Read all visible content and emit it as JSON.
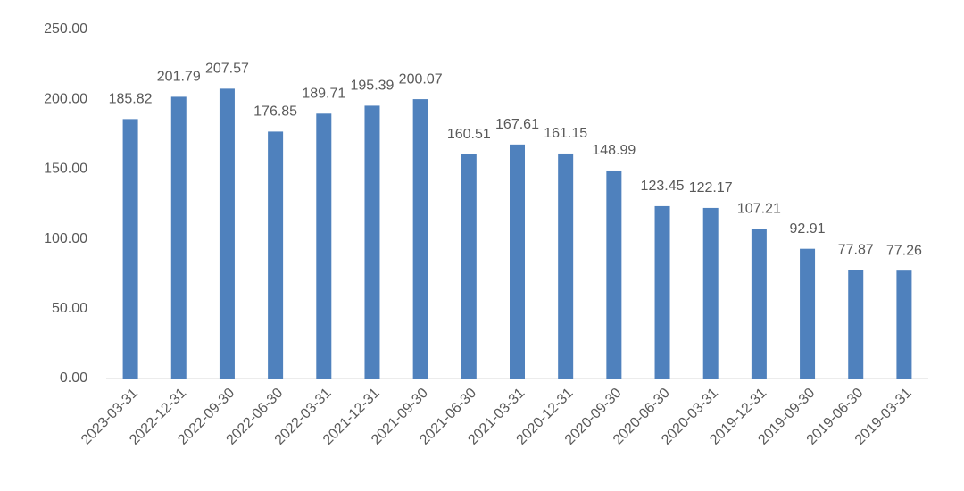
{
  "chart_data": {
    "type": "bar",
    "categories": [
      "2023-03-31",
      "2022-12-31",
      "2022-09-30",
      "2022-06-30",
      "2022-03-31",
      "2021-12-31",
      "2021-09-30",
      "2021-06-30",
      "2021-03-31",
      "2020-12-31",
      "2020-09-30",
      "2020-06-30",
      "2020-03-31",
      "2019-12-31",
      "2019-09-30",
      "2019-06-30",
      "2019-03-31"
    ],
    "values": [
      185.82,
      201.79,
      207.57,
      176.85,
      189.71,
      195.39,
      200.07,
      160.51,
      167.61,
      161.15,
      148.99,
      123.45,
      122.17,
      107.21,
      92.91,
      77.87,
      77.26
    ],
    "color": "#4f81bd",
    "ylim": [
      0,
      250
    ],
    "yticks": [
      {
        "value": 0,
        "label": "0.00"
      },
      {
        "value": 50,
        "label": "50.00"
      },
      {
        "value": 100,
        "label": "100.00"
      },
      {
        "value": 150,
        "label": "150.00"
      },
      {
        "value": 200,
        "label": "200.00"
      },
      {
        "value": 250,
        "label": "250.00"
      }
    ],
    "grid": false
  }
}
